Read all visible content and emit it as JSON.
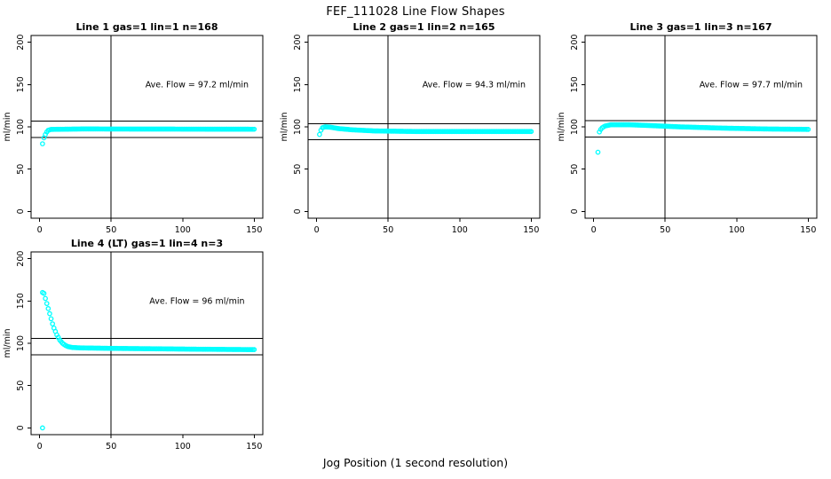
{
  "figure": {
    "title": "FEF_111028  Line Flow Shapes",
    "xlabel": "Jog Position (1 second resolution)"
  },
  "colors": {
    "points": "#00ffff",
    "axis": "#000000",
    "background": "#ffffff"
  },
  "chart_data": [
    {
      "type": "scatter",
      "title": "Line 1 gas=1 lin=1 n=168",
      "ylabel": "ml/min",
      "annotation": "Ave. Flow =  97.2  ml/min",
      "ave_flow_ml_min": 97.2,
      "n": 168,
      "gas": 1,
      "lin": 1,
      "xlim": [
        -6,
        156
      ],
      "ylim": [
        -8,
        208
      ],
      "xticks": [
        0,
        50,
        100,
        150
      ],
      "yticks": [
        0,
        50,
        100,
        150,
        200
      ],
      "vline_x": 50,
      "hlines": [
        106.9,
        87.5
      ],
      "point_step": 1,
      "x_end": 150,
      "series_keypoints": [
        [
          3,
          87
        ],
        [
          4,
          91
        ],
        [
          5,
          94
        ],
        [
          6,
          96
        ],
        [
          8,
          97
        ],
        [
          30,
          97.5
        ],
        [
          150,
          97.2
        ]
      ],
      "outlier_points": [
        [
          2,
          80
        ]
      ]
    },
    {
      "type": "scatter",
      "title": "Line 2 gas=1 lin=2 n=165",
      "ylabel": "ml/min",
      "annotation": "Ave. Flow =  94.3  ml/min",
      "ave_flow_ml_min": 94.3,
      "n": 165,
      "gas": 1,
      "lin": 2,
      "xlim": [
        -6,
        156
      ],
      "ylim": [
        -8,
        208
      ],
      "xticks": [
        0,
        50,
        100,
        150
      ],
      "yticks": [
        0,
        50,
        100,
        150,
        200
      ],
      "vline_x": 50,
      "hlines": [
        103.7,
        84.9
      ],
      "point_step": 1,
      "x_end": 150,
      "series_keypoints": [
        [
          2,
          91
        ],
        [
          3,
          96
        ],
        [
          4,
          99
        ],
        [
          6,
          100
        ],
        [
          10,
          99.5
        ],
        [
          15,
          98
        ],
        [
          25,
          96.5
        ],
        [
          40,
          95.2
        ],
        [
          70,
          94.5
        ],
        [
          150,
          94.5
        ]
      ],
      "outlier_points": []
    },
    {
      "type": "scatter",
      "title": "Line 3 gas=1 lin=3 n=167",
      "ylabel": "ml/min",
      "annotation": "Ave. Flow =  97.7  ml/min",
      "ave_flow_ml_min": 97.7,
      "n": 167,
      "gas": 1,
      "lin": 3,
      "xlim": [
        -6,
        156
      ],
      "ylim": [
        -8,
        208
      ],
      "xticks": [
        0,
        50,
        100,
        150
      ],
      "yticks": [
        0,
        50,
        100,
        150,
        200
      ],
      "vline_x": 50,
      "hlines": [
        107.5,
        87.9
      ],
      "point_step": 1,
      "x_end": 150,
      "series_keypoints": [
        [
          4,
          94
        ],
        [
          5,
          97
        ],
        [
          6,
          99
        ],
        [
          8,
          101
        ],
        [
          12,
          102.5
        ],
        [
          25,
          102.5
        ],
        [
          40,
          101.5
        ],
        [
          60,
          100
        ],
        [
          90,
          98.5
        ],
        [
          120,
          97.5
        ],
        [
          150,
          97
        ]
      ],
      "outlier_points": [
        [
          3,
          70
        ]
      ]
    },
    {
      "type": "scatter",
      "title": "Line 4 (LT) gas=1 lin=4 n=3",
      "ylabel": "ml/min",
      "annotation": "Ave. Flow =  96  ml/min",
      "ave_flow_ml_min": 96,
      "n": 3,
      "gas": 1,
      "lin": 4,
      "xlim": [
        -6,
        156
      ],
      "ylim": [
        -8,
        208
      ],
      "xticks": [
        0,
        50,
        100,
        150
      ],
      "yticks": [
        0,
        50,
        100,
        150,
        200
      ],
      "vline_x": 50,
      "hlines": [
        105.6,
        86.4
      ],
      "point_step": 1,
      "x_end": 150,
      "series_keypoints": [
        [
          2,
          160
        ],
        [
          3,
          159
        ],
        [
          4,
          153
        ],
        [
          5,
          147
        ],
        [
          6,
          141
        ],
        [
          7,
          135
        ],
        [
          8,
          129
        ],
        [
          9,
          123
        ],
        [
          10,
          118
        ],
        [
          11,
          114
        ],
        [
          12,
          110
        ],
        [
          13,
          107
        ],
        [
          14,
          104
        ],
        [
          16,
          100
        ],
        [
          18,
          97.5
        ],
        [
          20,
          96
        ],
        [
          23,
          95
        ],
        [
          30,
          94.5
        ],
        [
          50,
          94
        ],
        [
          80,
          93.5
        ],
        [
          110,
          93
        ],
        [
          150,
          92.5
        ]
      ],
      "outlier_points": [
        [
          2,
          0
        ]
      ]
    }
  ]
}
